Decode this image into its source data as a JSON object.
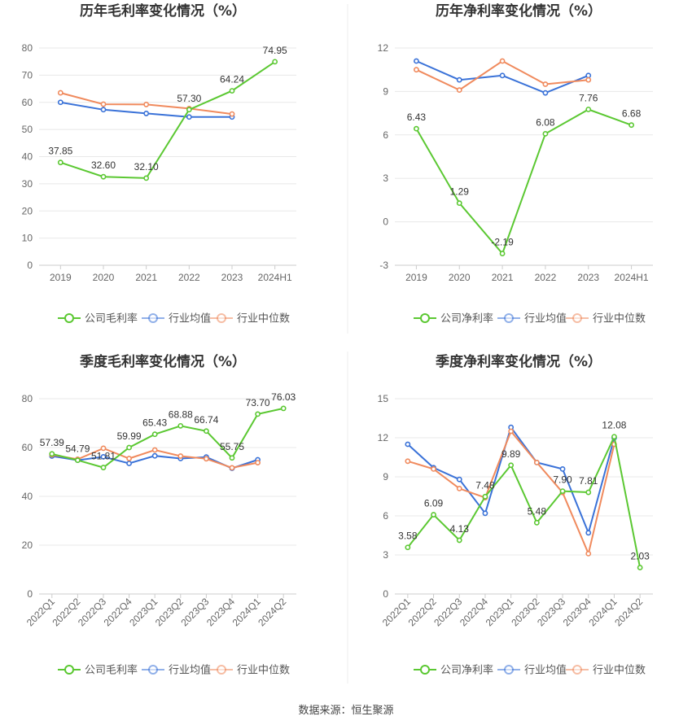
{
  "colors": {
    "company": "#5bc832",
    "industry_avg": "#3a72d8",
    "industry_median": "#f08a5d"
  },
  "source_label": "数据来源：恒生聚源",
  "chart_data": [
    {
      "type": "line",
      "title": "历年毛利率变化情况（%）",
      "categories": [
        "2019",
        "2020",
        "2021",
        "2022",
        "2023",
        "2024H1"
      ],
      "ylim": [
        0,
        80
      ],
      "yticks": [
        0,
        10,
        20,
        30,
        40,
        50,
        60,
        70,
        80
      ],
      "rotate_xticks": false,
      "series": [
        {
          "name": "公司毛利率",
          "color": "#5bc832",
          "values": [
            37.85,
            32.6,
            32.1,
            57.3,
            64.24,
            74.95
          ],
          "labels": [
            "37.85",
            "32.60",
            "32.10",
            "57.30",
            "64.24",
            "74.95"
          ]
        },
        {
          "name": "行业均值",
          "color": "#3a72d8",
          "values": [
            60.0,
            57.3,
            55.9,
            54.6,
            54.6,
            null
          ]
        },
        {
          "name": "行业中位数",
          "color": "#f08a5d",
          "values": [
            63.5,
            59.3,
            59.2,
            57.7,
            55.7,
            null
          ]
        }
      ]
    },
    {
      "type": "line",
      "title": "历年净利率变化情况（%）",
      "categories": [
        "2019",
        "2020",
        "2021",
        "2022",
        "2023",
        "2024H1"
      ],
      "ylim": [
        -3,
        12
      ],
      "yticks": [
        -3,
        0,
        3,
        6,
        9,
        12
      ],
      "rotate_xticks": false,
      "series": [
        {
          "name": "公司净利率",
          "color": "#5bc832",
          "values": [
            6.43,
            1.29,
            -2.19,
            6.08,
            7.76,
            6.68
          ],
          "labels": [
            "6.43",
            "1.29",
            "-2.19",
            "6.08",
            "7.76",
            "6.68"
          ]
        },
        {
          "name": "行业均值",
          "color": "#3a72d8",
          "values": [
            11.1,
            9.8,
            10.1,
            8.9,
            10.1,
            null
          ]
        },
        {
          "name": "行业中位数",
          "color": "#f08a5d",
          "values": [
            10.5,
            9.1,
            11.1,
            9.5,
            9.8,
            null
          ]
        }
      ]
    },
    {
      "type": "line",
      "title": "季度毛利率变化情况（%）",
      "categories": [
        "2022Q1",
        "2022Q2",
        "2022Q3",
        "2022Q4",
        "2023Q1",
        "2023Q2",
        "2023Q3",
        "2023Q4",
        "2024Q1",
        "2024Q2"
      ],
      "ylim": [
        0,
        80
      ],
      "yticks": [
        0,
        20,
        40,
        60,
        80
      ],
      "rotate_xticks": true,
      "series": [
        {
          "name": "公司毛利率",
          "color": "#5bc832",
          "values": [
            57.39,
            54.79,
            51.81,
            59.99,
            65.43,
            68.88,
            66.74,
            55.75,
            73.7,
            76.03
          ],
          "labels": [
            "57.39",
            "54.79",
            "51.81",
            "59.99",
            "65.43",
            "68.88",
            "66.74",
            "55.75",
            "73.70",
            "76.03"
          ]
        },
        {
          "name": "行业均值",
          "color": "#3a72d8",
          "values": [
            56.5,
            54.8,
            56.2,
            53.5,
            56.6,
            55.5,
            56.1,
            51.5,
            55.0,
            null
          ]
        },
        {
          "name": "行业中位数",
          "color": "#f08a5d",
          "values": [
            57.0,
            55.2,
            59.7,
            55.5,
            59.0,
            56.5,
            55.4,
            51.7,
            53.8,
            null
          ]
        }
      ]
    },
    {
      "type": "line",
      "title": "季度净利率变化情况（%）",
      "categories": [
        "2022Q1",
        "2022Q2",
        "2022Q3",
        "2022Q4",
        "2023Q1",
        "2023Q2",
        "2023Q3",
        "2023Q4",
        "2024Q1",
        "2024Q2"
      ],
      "ylim": [
        0,
        15
      ],
      "yticks": [
        0,
        3,
        6,
        9,
        12,
        15
      ],
      "rotate_xticks": true,
      "series": [
        {
          "name": "公司净利率",
          "color": "#5bc832",
          "values": [
            3.58,
            6.09,
            4.13,
            7.48,
            9.89,
            5.48,
            7.9,
            7.81,
            12.08,
            2.03
          ],
          "labels": [
            "3.58",
            "6.09",
            "4.13",
            "7.48",
            "9.89",
            "5.48",
            "7.90",
            "7.81",
            "12.08",
            "2.03"
          ]
        },
        {
          "name": "行业均值",
          "color": "#3a72d8",
          "values": [
            11.5,
            9.7,
            8.8,
            6.2,
            12.8,
            10.1,
            9.6,
            4.7,
            12.0,
            null
          ]
        },
        {
          "name": "行业中位数",
          "color": "#f08a5d",
          "values": [
            10.2,
            9.6,
            8.1,
            7.4,
            12.5,
            10.1,
            7.8,
            3.1,
            11.5,
            null
          ]
        }
      ]
    }
  ]
}
